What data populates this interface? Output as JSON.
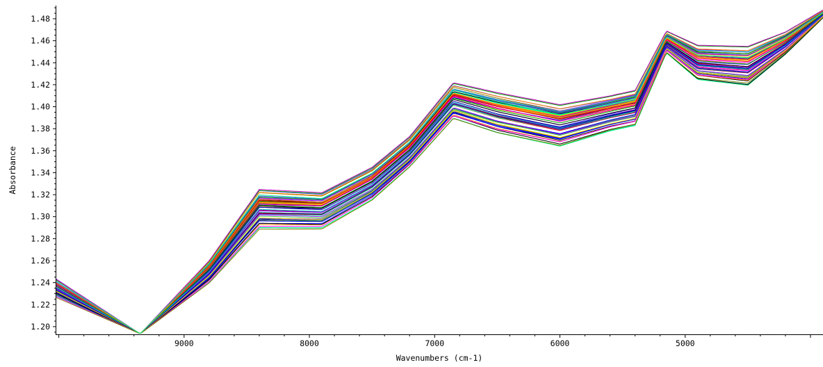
{
  "chart_data": {
    "type": "line",
    "title": "",
    "xlabel": "Wavenumbers (cm-1)",
    "ylabel": "Absorbance",
    "xlim": [
      10020,
      3900
    ],
    "ylim": [
      1.193,
      1.492
    ],
    "x_reversed": true,
    "grid": false,
    "legend": "none",
    "x_ticks": [
      9000,
      8000,
      7000,
      6000,
      5000
    ],
    "x_tick_labels": [
      "9000",
      "8000",
      "7000",
      "6000",
      "5000"
    ],
    "y_ticks": [
      1.2,
      1.22,
      1.24,
      1.26,
      1.28,
      1.3,
      1.32,
      1.34,
      1.36,
      1.38,
      1.4,
      1.42,
      1.44,
      1.46,
      1.48
    ],
    "y_tick_labels": [
      "1.20",
      "1.22",
      "1.24",
      "1.26",
      "1.28",
      "1.30",
      "1.32",
      "1.34",
      "1.36",
      "1.38",
      "1.40",
      "1.42",
      "1.44",
      "1.46",
      "1.48"
    ],
    "series_count": 60,
    "series_colors": [
      "#0000ff",
      "#ff0000",
      "#00a000",
      "#000000",
      "#ff00ff",
      "#00c8c8",
      "#8000ff",
      "#ffd700",
      "#0000a0",
      "#808000",
      "#ff8000",
      "#00ff80",
      "#a00050",
      "#4040ff",
      "#40c040",
      "#c000c0"
    ],
    "reference_spectrum": {
      "x": [
        10020,
        9900,
        9800,
        9700,
        9600,
        9500,
        9400,
        9350,
        9300,
        9200,
        9100,
        9000,
        8950,
        8900,
        8850,
        8800,
        8750,
        8700,
        8650,
        8600,
        8500,
        8400,
        8300,
        8200,
        8100,
        8000,
        7900,
        7800,
        7700,
        7600,
        7500,
        7400,
        7300,
        7250,
        7200,
        7150,
        7100,
        7050,
        7000,
        6950,
        6900,
        6850,
        6800,
        6700,
        6600,
        6500,
        6400,
        6300,
        6200,
        6100,
        6000,
        5900,
        5800,
        5700,
        5600,
        5500,
        5450,
        5400,
        5350,
        5300,
        5250,
        5200,
        5150,
        5100,
        5050,
        5000,
        4900,
        4800,
        4700,
        4600,
        4550,
        4500,
        4450,
        4400,
        4300,
        4200,
        4100,
        4000,
        3900
      ],
      "y": [
        1.233,
        1.228,
        1.219,
        1.209,
        1.201,
        1.196,
        1.1935,
        1.1935,
        1.194,
        1.199,
        1.205,
        1.212,
        1.216,
        1.222,
        1.233,
        1.25,
        1.27,
        1.285,
        1.294,
        1.299,
        1.302,
        1.303,
        1.304,
        1.303,
        1.302,
        1.302,
        1.304,
        1.308,
        1.314,
        1.321,
        1.329,
        1.338,
        1.346,
        1.353,
        1.362,
        1.374,
        1.386,
        1.396,
        1.403,
        1.408,
        1.41,
        1.411,
        1.411,
        1.409,
        1.404,
        1.398,
        1.394,
        1.39,
        1.387,
        1.386,
        1.386,
        1.388,
        1.392,
        1.395,
        1.395,
        1.398,
        1.401,
        1.404,
        1.41,
        1.423,
        1.442,
        1.456,
        1.462,
        1.462,
        1.457,
        1.451,
        1.446,
        1.442,
        1.441,
        1.44,
        1.44,
        1.439,
        1.442,
        1.447,
        1.451,
        1.456,
        1.463,
        1.47,
        1.484
      ]
    },
    "spread_envelope": {
      "x": [
        10020,
        9350,
        8800,
        8400,
        7900,
        7500,
        7200,
        6850,
        6500,
        6000,
        5600,
        5400,
        5150,
        4900,
        4500,
        4200,
        3900
      ],
      "y_low": [
        1.227,
        1.1935,
        1.24,
        1.289,
        1.289,
        1.315,
        1.345,
        1.389,
        1.376,
        1.364,
        1.378,
        1.383,
        1.449,
        1.425,
        1.42,
        1.448,
        1.481
      ],
      "y_high": [
        1.243,
        1.1935,
        1.26,
        1.325,
        1.322,
        1.345,
        1.373,
        1.422,
        1.413,
        1.402,
        1.41,
        1.415,
        1.469,
        1.456,
        1.455,
        1.468,
        1.488
      ]
    }
  }
}
